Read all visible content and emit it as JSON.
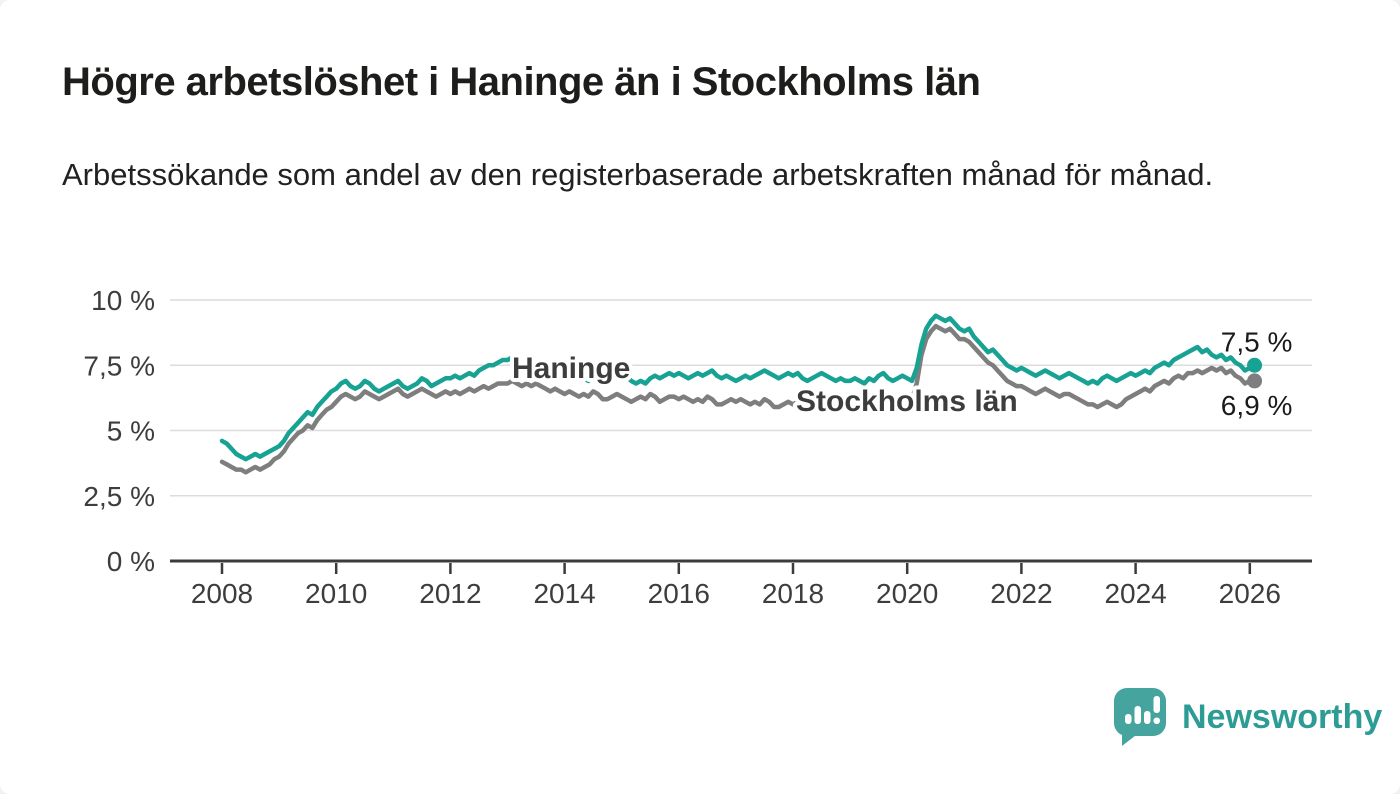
{
  "header": {
    "title": "Högre arbetslöshet i Haninge än i Stockholms län",
    "subtitle": "Arbetssökande som andel av den registerbaserade arbetskraften månad för månad."
  },
  "colors": {
    "haninge_line": "#17a294",
    "stockholm_line": "#7e7e7e",
    "grid_line": "#dcdcdc",
    "axis_line": "#3b3b3b",
    "axis_text": "#3d3d3d",
    "title_text": "#1d1d1b",
    "end_label_text": "#1a1a1a",
    "brand_teal": "#2d9c95",
    "logo_teal": "#46a49e"
  },
  "chart_data": {
    "type": "line",
    "title": "Högre arbetslöshet i Haninge än i Stockholms län",
    "subtitle": "Arbetssökande som andel av den registerbaserade arbetskraften månad för månad.",
    "x_unit": "month",
    "x_start": "2008-01",
    "x_end": "2026-02",
    "x_ticks": [
      2008,
      2010,
      2012,
      2014,
      2016,
      2018,
      2020,
      2022,
      2024,
      2026
    ],
    "y_ticks": [
      {
        "value": 0,
        "label": "0 %"
      },
      {
        "value": 2.5,
        "label": "2,5 %"
      },
      {
        "value": 5,
        "label": "5 %"
      },
      {
        "value": 7.5,
        "label": "7,5 %"
      },
      {
        "value": 10,
        "label": "10 %"
      }
    ],
    "ylim": [
      0,
      10.5
    ],
    "grid": true,
    "legend_position": "inline",
    "series": [
      {
        "name": "Haninge",
        "color": "#17a294",
        "end_label": "7,5 %",
        "end_value": 7.5,
        "values": [
          4.6,
          4.5,
          4.3,
          4.1,
          4.0,
          3.9,
          4.0,
          4.1,
          4.0,
          4.1,
          4.2,
          4.3,
          4.4,
          4.6,
          4.9,
          5.1,
          5.3,
          5.5,
          5.7,
          5.6,
          5.9,
          6.1,
          6.3,
          6.5,
          6.6,
          6.8,
          6.9,
          6.7,
          6.6,
          6.7,
          6.9,
          6.8,
          6.6,
          6.5,
          6.6,
          6.7,
          6.8,
          6.9,
          6.7,
          6.6,
          6.7,
          6.8,
          7.0,
          6.9,
          6.7,
          6.8,
          6.9,
          7.0,
          7.0,
          7.1,
          7.0,
          7.1,
          7.2,
          7.1,
          7.3,
          7.4,
          7.5,
          7.5,
          7.6,
          7.7,
          7.7,
          7.8,
          7.6,
          7.5,
          7.4,
          7.3,
          7.4,
          7.3,
          7.2,
          7.1,
          7.2,
          7.3,
          7.2,
          7.1,
          7.0,
          7.1,
          7.0,
          6.9,
          7.1,
          7.0,
          6.9,
          7.0,
          7.1,
          7.0,
          7.0,
          7.1,
          6.9,
          6.8,
          6.9,
          6.8,
          7.0,
          7.1,
          7.0,
          7.1,
          7.2,
          7.1,
          7.2,
          7.1,
          7.0,
          7.1,
          7.2,
          7.1,
          7.2,
          7.3,
          7.1,
          7.0,
          7.1,
          7.0,
          6.9,
          7.0,
          7.1,
          7.0,
          7.1,
          7.2,
          7.3,
          7.2,
          7.1,
          7.0,
          7.1,
          7.2,
          7.1,
          7.2,
          7.0,
          6.9,
          7.0,
          7.1,
          7.2,
          7.1,
          7.0,
          6.9,
          7.0,
          6.9,
          6.9,
          7.0,
          6.9,
          6.8,
          7.0,
          6.9,
          7.1,
          7.2,
          7.0,
          6.9,
          7.0,
          7.1,
          7.0,
          6.9,
          7.4,
          8.3,
          8.9,
          9.2,
          9.4,
          9.3,
          9.2,
          9.3,
          9.1,
          8.9,
          8.8,
          8.9,
          8.6,
          8.4,
          8.2,
          8.0,
          8.1,
          7.9,
          7.7,
          7.5,
          7.4,
          7.3,
          7.4,
          7.3,
          7.2,
          7.1,
          7.2,
          7.3,
          7.2,
          7.1,
          7.0,
          7.1,
          7.2,
          7.1,
          7.0,
          6.9,
          6.8,
          6.9,
          6.8,
          7.0,
          7.1,
          7.0,
          6.9,
          7.0,
          7.1,
          7.2,
          7.1,
          7.2,
          7.3,
          7.2,
          7.4,
          7.5,
          7.6,
          7.5,
          7.7,
          7.8,
          7.9,
          8.0,
          8.1,
          8.2,
          8.0,
          8.1,
          7.9,
          7.8,
          7.9,
          7.7,
          7.8,
          7.6,
          7.5,
          7.3,
          7.4,
          7.5
        ]
      },
      {
        "name": "Stockholms län",
        "color": "#7e7e7e",
        "end_label": "6,9 %",
        "end_value": 6.9,
        "values": [
          3.8,
          3.7,
          3.6,
          3.5,
          3.5,
          3.4,
          3.5,
          3.6,
          3.5,
          3.6,
          3.7,
          3.9,
          4.0,
          4.2,
          4.5,
          4.7,
          4.9,
          5.0,
          5.2,
          5.1,
          5.4,
          5.6,
          5.8,
          5.9,
          6.1,
          6.3,
          6.4,
          6.3,
          6.2,
          6.3,
          6.5,
          6.4,
          6.3,
          6.2,
          6.3,
          6.4,
          6.5,
          6.6,
          6.4,
          6.3,
          6.4,
          6.5,
          6.6,
          6.5,
          6.4,
          6.3,
          6.4,
          6.5,
          6.4,
          6.5,
          6.4,
          6.5,
          6.6,
          6.5,
          6.6,
          6.7,
          6.6,
          6.7,
          6.8,
          6.8,
          6.8,
          6.9,
          6.8,
          6.7,
          6.8,
          6.7,
          6.8,
          6.7,
          6.6,
          6.5,
          6.6,
          6.5,
          6.4,
          6.5,
          6.4,
          6.3,
          6.4,
          6.3,
          6.5,
          6.4,
          6.2,
          6.2,
          6.3,
          6.4,
          6.3,
          6.2,
          6.1,
          6.2,
          6.3,
          6.2,
          6.4,
          6.3,
          6.1,
          6.2,
          6.3,
          6.3,
          6.2,
          6.3,
          6.2,
          6.1,
          6.2,
          6.1,
          6.3,
          6.2,
          6.0,
          6.0,
          6.1,
          6.2,
          6.1,
          6.2,
          6.1,
          6.0,
          6.1,
          6.0,
          6.2,
          6.1,
          5.9,
          5.9,
          6.0,
          6.1,
          6.0,
          6.1,
          6.0,
          5.9,
          6.0,
          6.0,
          6.1,
          6.0,
          5.9,
          6.0,
          6.1,
          6.1,
          6.0,
          5.9,
          5.8,
          5.8,
          5.9,
          6.0,
          6.1,
          6.2,
          6.1,
          6.0,
          6.1,
          6.3,
          6.3,
          6.2,
          6.8,
          7.9,
          8.5,
          8.8,
          9.0,
          8.9,
          8.8,
          8.9,
          8.7,
          8.5,
          8.5,
          8.4,
          8.2,
          8.0,
          7.8,
          7.6,
          7.5,
          7.3,
          7.1,
          6.9,
          6.8,
          6.7,
          6.7,
          6.6,
          6.5,
          6.4,
          6.5,
          6.6,
          6.5,
          6.4,
          6.3,
          6.4,
          6.4,
          6.3,
          6.2,
          6.1,
          6.0,
          6.0,
          5.9,
          6.0,
          6.1,
          6.0,
          5.9,
          6.0,
          6.2,
          6.3,
          6.4,
          6.5,
          6.6,
          6.5,
          6.7,
          6.8,
          6.9,
          6.8,
          7.0,
          7.1,
          7.0,
          7.2,
          7.2,
          7.3,
          7.2,
          7.3,
          7.4,
          7.3,
          7.4,
          7.2,
          7.3,
          7.1,
          7.0,
          6.8,
          6.9,
          6.9
        ]
      }
    ]
  },
  "branding": {
    "name": "Newsworthy",
    "icon": "newsworthy-speech-bubble-chart-icon"
  }
}
